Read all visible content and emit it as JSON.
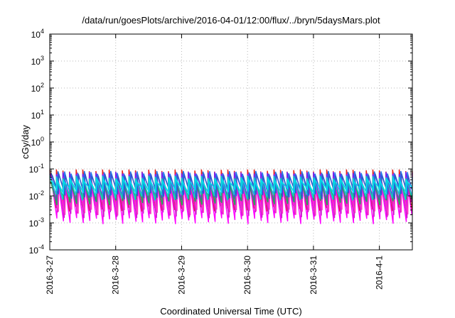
{
  "chart_data": {
    "type": "line",
    "title": "/data/run/goesPlots/archive/2016-04-01/12:00/flux/../bryn/5daysMars.plot",
    "xlabel": "Coordinated Universal Time (UTC)",
    "ylabel": "cGy/day",
    "y_scale": "log",
    "ylim": [
      0.0001,
      10000
    ],
    "xlim_days": [
      0,
      5.5
    ],
    "grid": true,
    "legend": "none",
    "x_ticks": [
      {
        "day": 0,
        "label": "2016-3-27"
      },
      {
        "day": 1,
        "label": "2016-3-28"
      },
      {
        "day": 2,
        "label": "2016-3-29"
      },
      {
        "day": 3,
        "label": "2016-3-30"
      },
      {
        "day": 4,
        "label": "2016-3-31"
      },
      {
        "day": 5,
        "label": "2016-4-1"
      }
    ],
    "y_ticks": [
      {
        "exp": -4,
        "base": "10",
        "sup": "-4"
      },
      {
        "exp": -3,
        "base": "10",
        "sup": "-3"
      },
      {
        "exp": -2,
        "base": "10",
        "sup": "-2"
      },
      {
        "exp": -1,
        "base": "10",
        "sup": "-1"
      },
      {
        "exp": 0,
        "base": "10",
        "sup": "0"
      },
      {
        "exp": 1,
        "base": "10",
        "sup": "1"
      },
      {
        "exp": 2,
        "base": "10",
        "sup": "2"
      },
      {
        "exp": 3,
        "base": "10",
        "sup": "3"
      },
      {
        "exp": 4,
        "base": "10",
        "sup": "4"
      }
    ],
    "cycles_per_day": 10,
    "series_profile": [
      {
        "color": "#e8251e",
        "peak": 0.09,
        "trough": 0.0035
      },
      {
        "color": "#ff00ff",
        "peak": 0.06,
        "trough": 0.0012
      },
      {
        "color": "#cc22cc",
        "peak": 0.05,
        "trough": 0.002
      },
      {
        "color": "#ff33cc",
        "peak": 0.035,
        "trough": 0.0025
      },
      {
        "color": "#7722ee",
        "peak": 0.07,
        "trough": 0.008
      },
      {
        "color": "#22aa55",
        "peak": 0.04,
        "trough": 0.006
      },
      {
        "color": "#2277ee",
        "peak": 0.075,
        "trough": 0.012
      },
      {
        "color": "#3355cc",
        "peak": 0.06,
        "trough": 0.01
      },
      {
        "color": "#11cccc",
        "peak": 0.05,
        "trough": 0.009
      },
      {
        "color": "#00ddee",
        "peak": 0.04,
        "trough": 0.015
      }
    ]
  }
}
